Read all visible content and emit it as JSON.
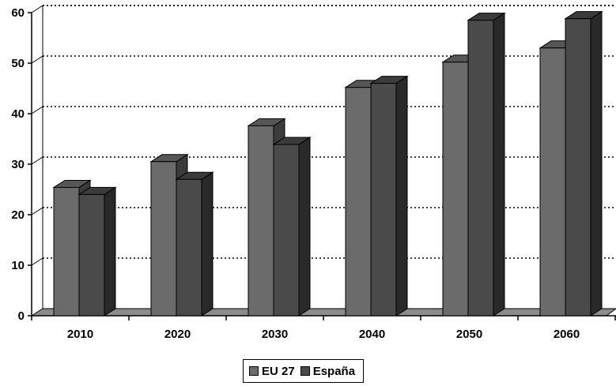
{
  "chart_data": {
    "type": "bar",
    "three_d": true,
    "categories": [
      "2010",
      "2020",
      "2030",
      "2040",
      "2050",
      "2060"
    ],
    "series": [
      {
        "name": "EU 27",
        "values": [
          25.4,
          30.5,
          37.6,
          45.2,
          50.2,
          53.0
        ],
        "color": "#6b6b6b"
      },
      {
        "name": "España",
        "values": [
          24.0,
          27.0,
          33.9,
          46.0,
          58.5,
          58.8
        ],
        "color": "#4a4a4a"
      }
    ],
    "yticks": [
      0,
      10,
      20,
      30,
      40,
      50,
      60
    ],
    "ylim": [
      0,
      60
    ],
    "grid": true,
    "grid_style": "dotted",
    "legend_position": "bottom-center",
    "title": "",
    "xlabel": "",
    "ylabel": ""
  }
}
